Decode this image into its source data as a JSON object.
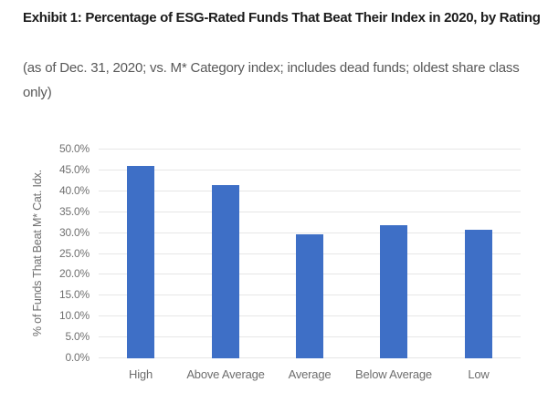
{
  "header": {
    "title": "Exhibit 1: Percentage of ESG-Rated Funds That Beat Their Index in 2020, by Rating",
    "subtitle": "(as of Dec. 31, 2020; vs. M* Category index; includes dead funds; oldest share class only)"
  },
  "chart_data": {
    "type": "bar",
    "categories": [
      "High",
      "Above Average",
      "Average",
      "Below Average",
      "Low"
    ],
    "values": [
      45.8,
      41.2,
      29.5,
      31.7,
      30.5
    ],
    "title": "",
    "xlabel": "",
    "ylabel": "% of Funds That Beat M* Cat. Idx.",
    "ylim": [
      0,
      50
    ],
    "ytick_values": [
      0,
      5,
      10,
      15,
      20,
      25,
      30,
      35,
      40,
      45,
      50
    ],
    "ytick_labels": [
      "0.0%",
      "5.0%",
      "10.0%",
      "15.0%",
      "20.0%",
      "25.0%",
      "30.0%",
      "35.0%",
      "40.0%",
      "45.0%",
      "50.0%"
    ],
    "grid": "horizontal",
    "legend": "none",
    "bar_color": "#3e6fc6",
    "gridline_color": "#e6e6e6",
    "tick_label_color": "#707070",
    "category_label_color": "#6e6e6e"
  }
}
